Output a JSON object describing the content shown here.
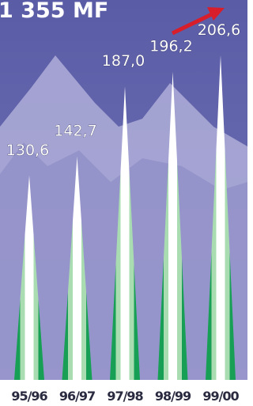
{
  "chart_data": {
    "type": "spike",
    "title": "1 355 MF",
    "categories": [
      "95/96",
      "96/97",
      "97/98",
      "98/99",
      "99/00"
    ],
    "values": [
      130.6,
      142.7,
      187.0,
      196.2,
      206.6
    ],
    "value_labels": [
      "130,6",
      "142,7",
      "187,0",
      "196,2",
      "206,6"
    ],
    "color": "#1fa85a"
  }
}
